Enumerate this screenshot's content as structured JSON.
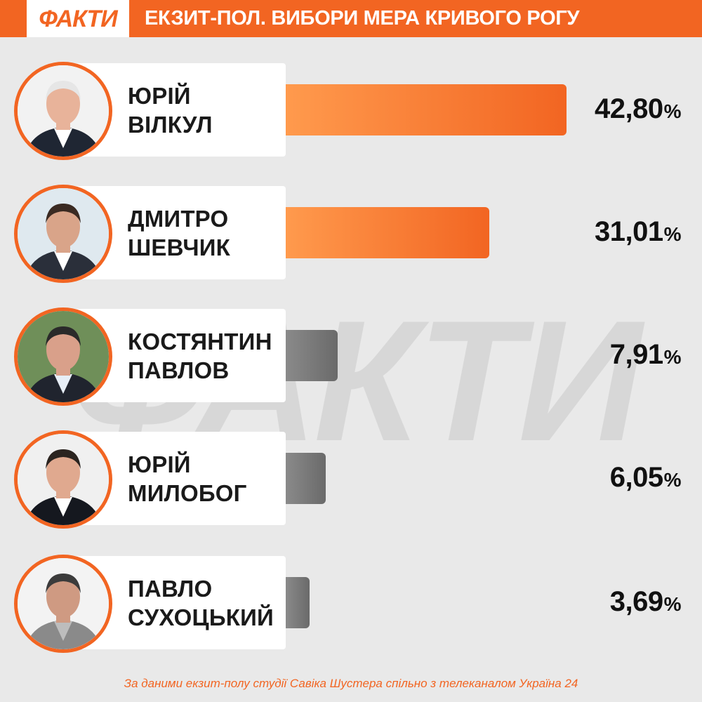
{
  "header": {
    "logo": "ФАКТИ",
    "title": "ЕКЗИТ-ПОЛ. ВИБОРИ МЕРА КРИВОГО РОГУ"
  },
  "watermark": "ФАКТИ",
  "chart_data": {
    "type": "bar",
    "orientation": "horizontal",
    "title": "ЕКЗИТ-ПОЛ. ВИБОРИ МЕРА КРИВОГО РОГУ",
    "categories": [
      "ЮРІЙ ВІЛКУЛ",
      "ДМИТРО ШЕВЧИК",
      "КОСТЯНТИН ПАВЛОВ",
      "ЮРІЙ МИЛОБОГ",
      "ПАВЛО СУХОЦЬКИЙ"
    ],
    "values": [
      42.8,
      31.01,
      7.91,
      6.05,
      3.69
    ],
    "unit": "%",
    "grid": false,
    "legend": "none",
    "colors": {
      "highlight": "#f26522",
      "other": "#7a7a7a"
    },
    "items": [
      {
        "first": "ЮРІЙ",
        "last": "ВІЛКУЛ",
        "value_label": "42,80",
        "pct": "%",
        "value": 42.8,
        "color": "orange"
      },
      {
        "first": "ДМИТРО",
        "last": "ШЕВЧИК",
        "value_label": "31,01",
        "pct": "%",
        "value": 31.01,
        "color": "orange"
      },
      {
        "first": "КОСТЯНТИН",
        "last": "ПАВЛОВ",
        "value_label": "7,91",
        "pct": "%",
        "value": 7.91,
        "color": "gray"
      },
      {
        "first": "ЮРІЙ",
        "last": "МИЛОБОГ",
        "value_label": "6,05",
        "pct": "%",
        "value": 6.05,
        "color": "gray"
      },
      {
        "first": "ПАВЛО",
        "last": "СУХОЦЬКИЙ",
        "value_label": "3,69",
        "pct": "%",
        "value": 3.69,
        "color": "gray"
      }
    ]
  },
  "footer": {
    "source": "За даними екзит-полу студії Савіка Шустера спільно з телеканалом Україна 24"
  }
}
